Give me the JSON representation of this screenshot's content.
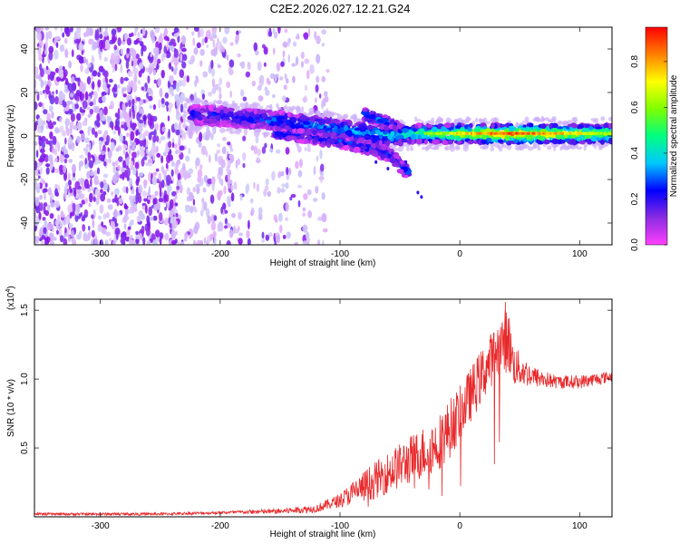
{
  "title": "C2E2.2026.027.12.21.G24",
  "chart_data": [
    {
      "type": "heatmap",
      "name": "spectrogram",
      "xlabel": "Height of straight line (km)",
      "ylabel": "Frequency (Hz)",
      "xlim": [
        -355,
        127
      ],
      "ylim": [
        -50,
        50
      ],
      "xticks": [
        -300,
        -200,
        -100,
        0,
        100
      ],
      "yticks": [
        -40,
        -20,
        0,
        20,
        40
      ],
      "colorbar": {
        "label": "Normalized spectral amplitude",
        "range": [
          0.0,
          0.95
        ],
        "ticks": [
          0.0,
          0.2,
          0.4,
          0.6,
          0.8
        ],
        "colors": [
          "#ff40ff",
          "#8a2be2",
          "#0000ff",
          "#00c8ff",
          "#00ff80",
          "#7fff00",
          "#ffff00",
          "#ff8000",
          "#ff0000"
        ]
      },
      "features": [
        {
          "name": "noise-region",
          "x_range": [
            -355,
            -110
          ],
          "y_range": [
            -50,
            50
          ],
          "amplitude": 0.1
        },
        {
          "name": "main-band",
          "x": [
            -225,
            -150,
            -100,
            -60,
            -40,
            0,
            40,
            127
          ],
          "y": [
            10,
            7,
            3,
            0,
            1,
            1,
            1,
            1
          ],
          "amplitude": [
            0.2,
            0.3,
            0.35,
            0.4,
            0.45,
            0.7,
            0.85,
            0.6
          ]
        },
        {
          "name": "descending-branch",
          "x": [
            -155,
            -100,
            -60,
            -42
          ],
          "y": [
            2,
            -2,
            -8,
            -17
          ],
          "amplitude": 0.25
        },
        {
          "name": "upper-branch",
          "x": [
            -80,
            -60,
            -42
          ],
          "y": [
            10,
            6,
            0
          ],
          "amplitude": 0.3
        }
      ]
    },
    {
      "type": "line",
      "name": "snr",
      "xlabel": "Height of straight line (km)",
      "ylabel": "SNR (10 * v/v)",
      "scale_label": "(x10",
      "scale_exp": "4",
      "scale_close": ")",
      "xlim": [
        -355,
        127
      ],
      "ylim": [
        0,
        1.58
      ],
      "xticks": [
        -300,
        -200,
        -100,
        0,
        100
      ],
      "yticks": [
        0.5,
        1.0,
        1.5
      ],
      "ytick_labels": [
        "0.5",
        "1.0",
        "1.5"
      ],
      "color": "#e8292b",
      "envelope_x": [
        -355,
        -250,
        -200,
        -150,
        -120,
        -100,
        -80,
        -60,
        -40,
        -20,
        -10,
        0,
        10,
        20,
        30,
        40,
        45,
        60,
        80,
        100,
        127
      ],
      "envelope_y": [
        0.02,
        0.02,
        0.03,
        0.04,
        0.06,
        0.12,
        0.22,
        0.32,
        0.42,
        0.52,
        0.62,
        0.75,
        0.9,
        1.05,
        1.2,
        1.3,
        1.1,
        1.02,
        0.98,
        0.98,
        1.02
      ],
      "spread_y": [
        0.01,
        0.01,
        0.01,
        0.02,
        0.03,
        0.05,
        0.12,
        0.15,
        0.18,
        0.2,
        0.22,
        0.2,
        0.2,
        0.2,
        0.2,
        0.25,
        0.15,
        0.08,
        0.05,
        0.05,
        0.04
      ],
      "peak": {
        "x": 38,
        "y": 1.56
      }
    }
  ]
}
